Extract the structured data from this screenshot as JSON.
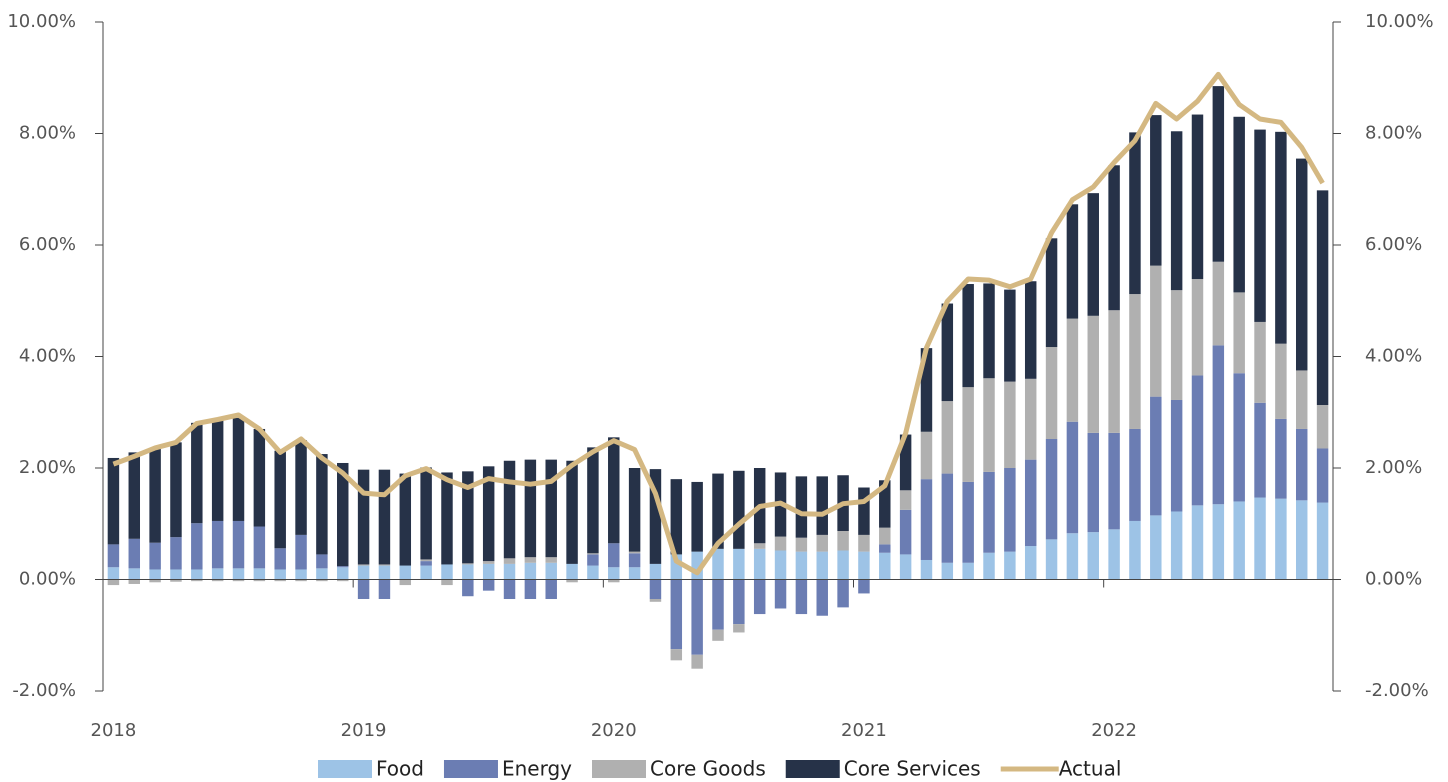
{
  "chart_data": {
    "type": "bar",
    "categories": [
      "2018",
      null,
      null,
      null,
      null,
      null,
      null,
      null,
      null,
      null,
      null,
      null,
      "2019",
      null,
      null,
      null,
      null,
      null,
      null,
      null,
      null,
      null,
      null,
      null,
      "2020",
      null,
      null,
      null,
      null,
      null,
      null,
      null,
      null,
      null,
      null,
      null,
      "2021",
      null,
      null,
      null,
      null,
      null,
      null,
      null,
      null,
      null,
      null,
      null,
      "2022",
      null,
      null,
      null,
      null,
      null,
      null,
      null,
      null,
      null,
      null
    ],
    "series": [
      {
        "name": "Food",
        "color": "#9dc3e6",
        "values": [
          0.22,
          0.2,
          0.18,
          0.18,
          0.18,
          0.2,
          0.2,
          0.2,
          0.18,
          0.18,
          0.2,
          0.22,
          0.25,
          0.25,
          0.25,
          0.25,
          0.27,
          0.27,
          0.28,
          0.28,
          0.3,
          0.3,
          0.28,
          0.25,
          0.22,
          0.22,
          0.28,
          0.45,
          0.5,
          0.55,
          0.55,
          0.55,
          0.52,
          0.5,
          0.5,
          0.52,
          0.5,
          0.48,
          0.45,
          0.35,
          0.3,
          0.3,
          0.48,
          0.5,
          0.6,
          0.72,
          0.83,
          0.85,
          0.9,
          1.05,
          1.15,
          1.22,
          1.33,
          1.35,
          1.4,
          1.47,
          1.45,
          1.42,
          1.38
        ]
      },
      {
        "name": "Energy",
        "color": "#6b7db3",
        "values": [
          0.41,
          0.53,
          0.48,
          0.58,
          0.83,
          0.85,
          0.85,
          0.75,
          0.38,
          0.62,
          0.25,
          0.02,
          -0.35,
          -0.35,
          0.0,
          0.08,
          0.0,
          -0.3,
          -0.2,
          -0.35,
          -0.35,
          -0.35,
          0.0,
          0.2,
          0.43,
          0.25,
          -0.35,
          -1.25,
          -1.35,
          -0.9,
          -0.8,
          -0.62,
          -0.52,
          -0.62,
          -0.65,
          -0.5,
          -0.25,
          0.15,
          0.8,
          1.45,
          1.6,
          1.45,
          1.45,
          1.5,
          1.55,
          1.8,
          2.0,
          1.78,
          1.73,
          1.65,
          2.13,
          2.0,
          2.33,
          2.85,
          2.3,
          1.7,
          1.43,
          1.28,
          0.97
        ]
      },
      {
        "name": "Core Goods",
        "color": "#b0b0b0",
        "values": [
          -0.1,
          -0.08,
          -0.05,
          -0.04,
          -0.03,
          -0.03,
          -0.03,
          -0.03,
          -0.03,
          -0.03,
          -0.03,
          -0.03,
          0.02,
          0.02,
          -0.1,
          0.03,
          -0.1,
          0.02,
          0.05,
          0.1,
          0.1,
          0.1,
          -0.05,
          0.02,
          -0.05,
          0.03,
          -0.05,
          -0.2,
          -0.25,
          -0.2,
          -0.15,
          0.1,
          0.25,
          0.25,
          0.3,
          0.35,
          0.3,
          0.3,
          0.35,
          0.85,
          1.3,
          1.7,
          1.68,
          1.55,
          1.45,
          1.65,
          1.85,
          2.1,
          2.2,
          2.42,
          2.35,
          1.97,
          1.73,
          1.5,
          1.45,
          1.45,
          1.35,
          1.05,
          0.78
        ]
      },
      {
        "name": "Core Services",
        "color": "#263248",
        "values": [
          1.55,
          1.55,
          1.7,
          1.7,
          1.8,
          1.8,
          1.85,
          1.75,
          1.75,
          1.7,
          1.8,
          1.85,
          1.7,
          1.7,
          1.65,
          1.65,
          1.65,
          1.65,
          1.7,
          1.75,
          1.75,
          1.75,
          1.85,
          1.9,
          1.9,
          1.5,
          1.7,
          1.35,
          1.25,
          1.35,
          1.4,
          1.35,
          1.15,
          1.1,
          1.05,
          1.0,
          0.85,
          0.85,
          1.0,
          1.5,
          1.75,
          1.85,
          1.7,
          1.65,
          1.75,
          1.95,
          2.05,
          2.2,
          2.6,
          2.9,
          2.7,
          2.85,
          2.95,
          3.15,
          3.15,
          3.45,
          3.8,
          3.8,
          3.85
        ]
      },
      {
        "name": "Actual",
        "color": "#d4b882",
        "type": "line",
        "values": [
          2.07,
          2.21,
          2.36,
          2.46,
          2.8,
          2.87,
          2.95,
          2.7,
          2.28,
          2.52,
          2.18,
          1.91,
          1.55,
          1.52,
          1.86,
          1.99,
          1.79,
          1.65,
          1.81,
          1.75,
          1.71,
          1.76,
          2.05,
          2.29,
          2.49,
          2.33,
          1.54,
          0.33,
          0.12,
          0.65,
          0.99,
          1.31,
          1.37,
          1.18,
          1.17,
          1.36,
          1.4,
          1.68,
          2.62,
          4.16,
          4.99,
          5.39,
          5.37,
          5.25,
          5.39,
          6.22,
          6.81,
          7.04,
          7.48,
          7.87,
          8.54,
          8.26,
          8.58,
          9.06,
          8.52,
          8.26,
          8.2,
          7.75,
          7.11
        ]
      }
    ],
    "ylim": [
      -2,
      10
    ],
    "yticks": [
      {
        "value": -2,
        "label": "-2.00%"
      },
      {
        "value": 0,
        "label": "0.00%"
      },
      {
        "value": 2,
        "label": "2.00%"
      },
      {
        "value": 4,
        "label": "4.00%"
      },
      {
        "value": 6,
        "label": "6.00%"
      },
      {
        "value": 8,
        "label": "8.00%"
      },
      {
        "value": 10,
        "label": "10.00%"
      }
    ],
    "y2lim": [
      -2,
      10
    ],
    "y2ticks": [
      {
        "value": -2,
        "label": "-2.00%"
      },
      {
        "value": 0,
        "label": "0.00%"
      },
      {
        "value": 2,
        "label": "2.00%"
      },
      {
        "value": 4,
        "label": "4.00%"
      },
      {
        "value": 6,
        "label": "6.00%"
      },
      {
        "value": 8,
        "label": "8.00%"
      },
      {
        "value": 10,
        "label": "10.00%"
      }
    ],
    "legend": "bottom"
  }
}
